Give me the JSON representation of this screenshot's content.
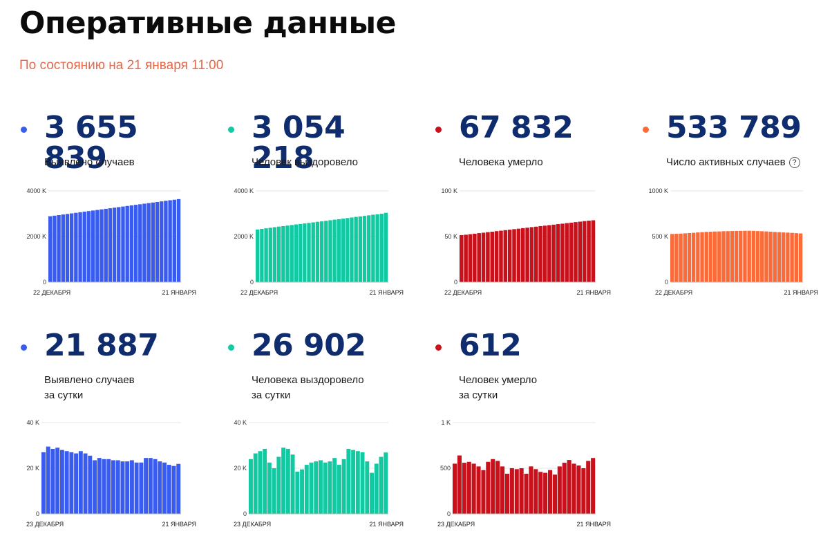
{
  "page": {
    "title": "Оперативные данные",
    "subtitle": "По состоянию на 21 января 11:00"
  },
  "colors": {
    "blue": "#3a5cee",
    "teal": "#13c9a2",
    "red": "#c8111b",
    "orange": "#fb6b3a"
  },
  "cards": [
    {
      "value": "3 655 839",
      "label": "Выявлено случаев",
      "label2": "",
      "color": "#3a5cee",
      "dot": "#3a5cee"
    },
    {
      "value": "3 054 218",
      "label": "Человек выздоровело",
      "label2": "",
      "color": "#13c9a2",
      "dot": "#13c9a2"
    },
    {
      "value": "67 832",
      "label": "Человека умерло",
      "label2": "",
      "color": "#c8111b",
      "dot": "#c8111b"
    },
    {
      "value": "533 789",
      "label": "Число активных случаев",
      "label2": "",
      "info": "?",
      "color": "#fb6b3a",
      "dot": "#fb6b3a"
    },
    {
      "value": "21 887",
      "label": "Выявлено случаев",
      "label2": "за сутки",
      "color": "#3a5cee",
      "dot": "#3a5cee"
    },
    {
      "value": "26 902",
      "label": "Человека выздоровело",
      "label2": "за сутки",
      "color": "#13c9a2",
      "dot": "#13c9a2"
    },
    {
      "value": "612",
      "label": "Человек умерло",
      "label2": "за сутки",
      "color": "#c8111b",
      "dot": "#c8111b"
    }
  ],
  "chart_data": [
    {
      "type": "bar",
      "x_start": "22 ДЕКАБРЯ",
      "x_end": "21 ЯНВАРЯ",
      "yticks": [
        "4000 K",
        "2000 K",
        "0"
      ],
      "ylim": [
        0,
        4000
      ],
      "unit": "K",
      "values": [
        2890,
        2915,
        2940,
        2965,
        2990,
        3015,
        3040,
        3065,
        3090,
        3115,
        3140,
        3165,
        3190,
        3215,
        3240,
        3265,
        3290,
        3315,
        3340,
        3365,
        3390,
        3415,
        3440,
        3465,
        3490,
        3515,
        3540,
        3565,
        3590,
        3615,
        3640
      ]
    },
    {
      "type": "bar",
      "x_start": "22 ДЕКАБРЯ",
      "x_end": "21 ЯНВАРЯ",
      "yticks": [
        "4000 K",
        "2000 K",
        "0"
      ],
      "ylim": [
        0,
        4000
      ],
      "unit": "K",
      "values": [
        2310,
        2335,
        2360,
        2385,
        2410,
        2435,
        2455,
        2480,
        2505,
        2530,
        2550,
        2575,
        2595,
        2620,
        2645,
        2665,
        2690,
        2715,
        2740,
        2760,
        2785,
        2810,
        2835,
        2860,
        2880,
        2905,
        2930,
        2955,
        2975,
        3000,
        3040
      ]
    },
    {
      "type": "bar",
      "x_start": "22 ДЕКАБРЯ",
      "x_end": "21 ЯНВАРЯ",
      "yticks": [
        "100 K",
        "50 K",
        "0"
      ],
      "ylim": [
        0,
        100
      ],
      "unit": "K",
      "values": [
        51.5,
        52.0,
        52.6,
        53.1,
        53.7,
        54.2,
        54.8,
        55.3,
        55.9,
        56.4,
        57.0,
        57.5,
        58.1,
        58.6,
        59.2,
        59.7,
        60.3,
        60.8,
        61.4,
        61.9,
        62.5,
        63.0,
        63.6,
        64.1,
        64.7,
        65.2,
        65.8,
        66.3,
        66.9,
        67.4,
        67.8
      ]
    },
    {
      "type": "bar",
      "x_start": "22 ДЕКАБРЯ",
      "x_end": "21 ЯНВАРЯ",
      "yticks": [
        "1000 K",
        "500 K"
      ],
      "ylim": [
        0,
        1000
      ],
      "unit": "K",
      "zero_label": "0",
      "values": [
        528,
        530,
        532,
        535,
        538,
        541,
        545,
        548,
        551,
        553,
        555,
        556,
        558,
        559,
        560,
        561,
        562,
        563,
        563,
        562,
        560,
        558,
        556,
        553,
        550,
        548,
        545,
        543,
        540,
        537,
        534
      ]
    },
    {
      "type": "bar",
      "x_start": "23 ДЕКАБРЯ",
      "x_end": "21 ЯНВАРЯ",
      "yticks": [
        "40 K",
        "20 K",
        "0"
      ],
      "ylim": [
        0,
        40
      ],
      "unit": "K",
      "values": [
        27.0,
        29.5,
        28.5,
        29.0,
        28.0,
        27.5,
        27.0,
        26.5,
        27.5,
        26.5,
        25.5,
        23.5,
        24.5,
        24.0,
        24.0,
        23.5,
        23.5,
        23.0,
        23.0,
        23.5,
        22.5,
        22.5,
        24.5,
        24.5,
        24.0,
        23.0,
        22.5,
        21.5,
        21.0,
        21.9
      ]
    },
    {
      "type": "bar",
      "x_start": "23 ДЕКАБРЯ",
      "x_end": "21 ЯНВАРЯ",
      "yticks": [
        "40 K",
        "20 K",
        "0"
      ],
      "ylim": [
        0,
        40
      ],
      "unit": "K",
      "values": [
        24.0,
        26.5,
        27.5,
        28.5,
        22.5,
        20.0,
        25.0,
        29.0,
        28.5,
        26.0,
        18.5,
        19.5,
        21.5,
        22.5,
        23.0,
        23.5,
        22.5,
        23.0,
        24.5,
        21.5,
        24.0,
        28.5,
        28.0,
        27.5,
        27.0,
        23.0,
        18.0,
        22.0,
        25.0,
        26.9
      ]
    },
    {
      "type": "bar",
      "x_start": "23 ДЕКАБРЯ",
      "x_end": "21 ЯНВАРЯ",
      "yticks": [
        "1 K",
        "500",
        "0"
      ],
      "ylim": [
        0,
        1000
      ],
      "unit": "",
      "values": [
        550,
        640,
        560,
        570,
        550,
        520,
        480,
        570,
        600,
        580,
        520,
        440,
        500,
        490,
        500,
        440,
        520,
        490,
        460,
        450,
        480,
        430,
        520,
        560,
        590,
        550,
        530,
        500,
        580,
        612
      ]
    }
  ]
}
